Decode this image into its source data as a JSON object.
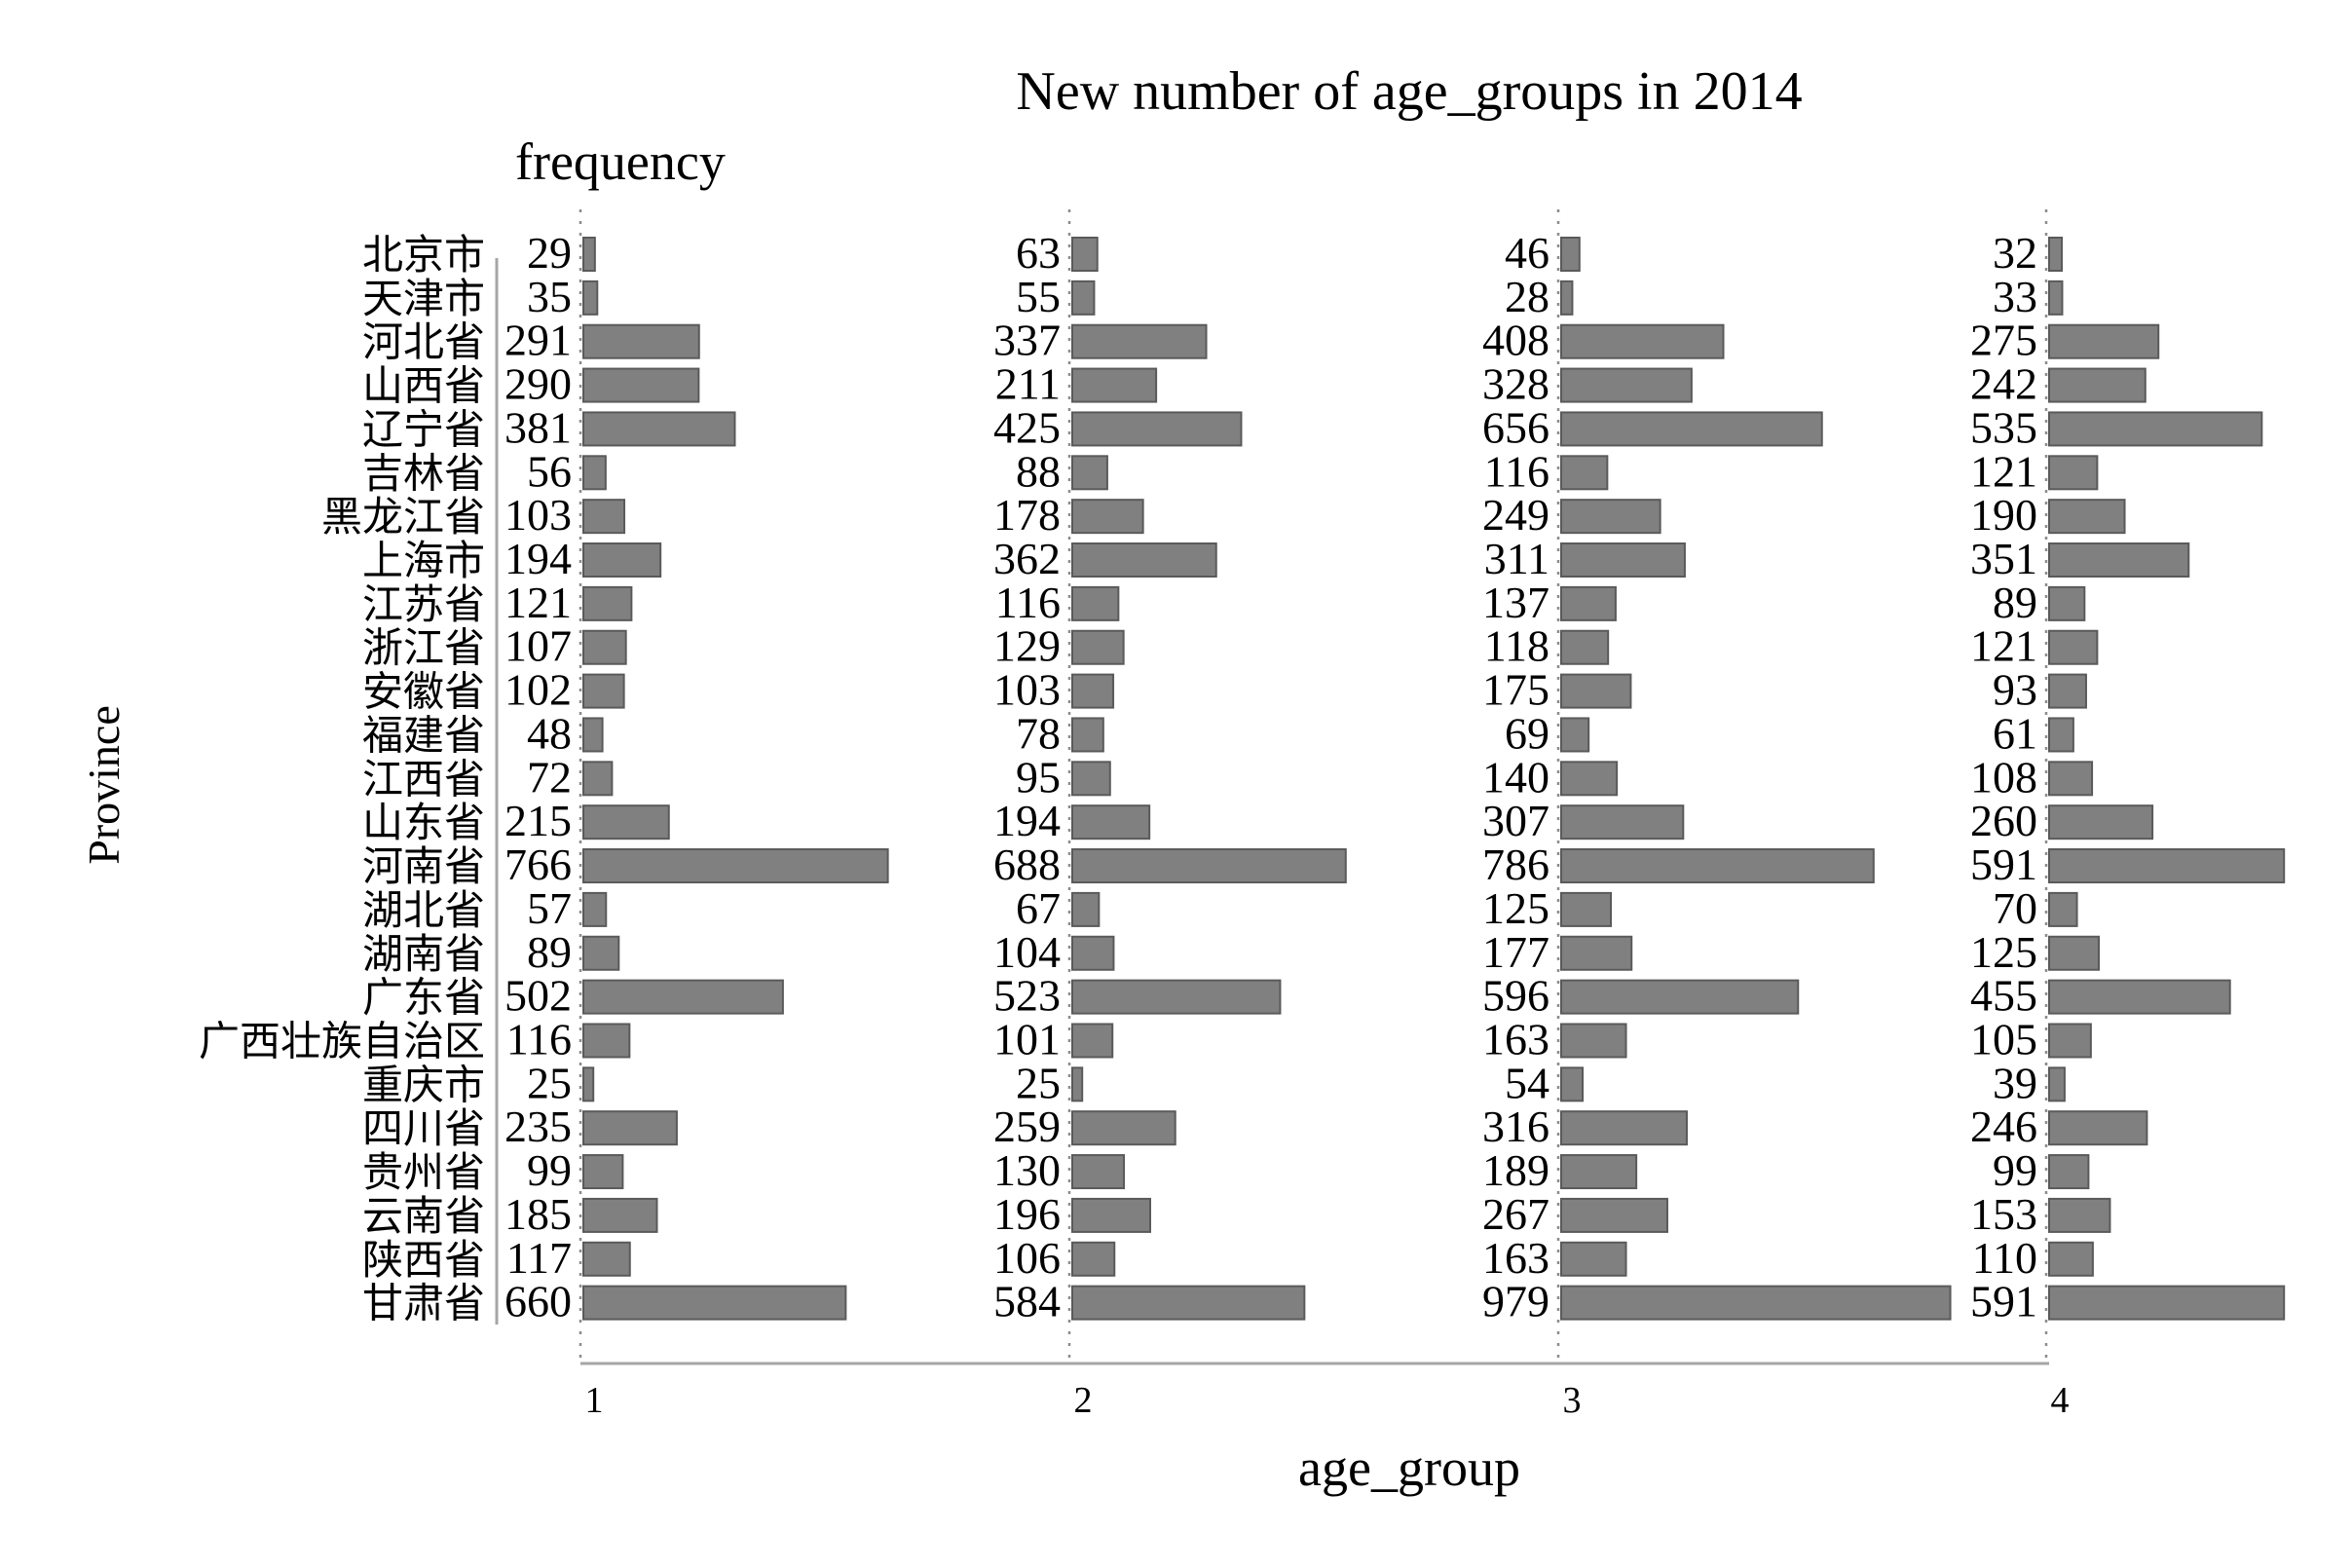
{
  "chart_data": {
    "type": "bar",
    "orientation": "horizontal",
    "layout": "small-multiples by age_group",
    "title": "New number of age_groups in 2014",
    "xlabel": "age_group",
    "ylabel": "Province",
    "value_label": "frequency",
    "xlim": [
      0,
      1230
    ],
    "grid": false,
    "categories": [
      "北京市",
      "天津市",
      "河北省",
      "山西省",
      "辽宁省",
      "吉林省",
      "黑龙江省",
      "上海市",
      "江苏省",
      "浙江省",
      "安徽省",
      "福建省",
      "江西省",
      "山东省",
      "河南省",
      "湖北省",
      "湖南省",
      "广东省",
      "广西壮族自治区",
      "重庆市",
      "四川省",
      "贵州省",
      "云南省",
      "陕西省",
      "甘肃省"
    ],
    "series": [
      {
        "name": "1",
        "values": [
          29,
          35,
          291,
          290,
          381,
          56,
          103,
          194,
          121,
          107,
          102,
          48,
          72,
          215,
          766,
          57,
          89,
          502,
          116,
          25,
          235,
          99,
          185,
          117,
          660
        ]
      },
      {
        "name": "2",
        "values": [
          63,
          55,
          337,
          211,
          425,
          88,
          178,
          362,
          116,
          129,
          103,
          78,
          95,
          194,
          688,
          67,
          104,
          523,
          101,
          25,
          259,
          130,
          196,
          106,
          584
        ]
      },
      {
        "name": "3",
        "values": [
          46,
          28,
          408,
          328,
          656,
          116,
          249,
          311,
          137,
          118,
          175,
          69,
          140,
          307,
          786,
          125,
          177,
          596,
          163,
          54,
          316,
          189,
          267,
          163,
          979
        ]
      },
      {
        "name": "4",
        "values": [
          32,
          33,
          275,
          242,
          535,
          121,
          190,
          351,
          89,
          121,
          93,
          61,
          108,
          260,
          591,
          70,
          125,
          455,
          105,
          39,
          246,
          99,
          153,
          110,
          591
        ]
      }
    ]
  },
  "colors": {
    "bar": "#808080",
    "bar_stroke": "#5a5a5a",
    "axis": "#a6a6a6",
    "text": "#000000"
  }
}
